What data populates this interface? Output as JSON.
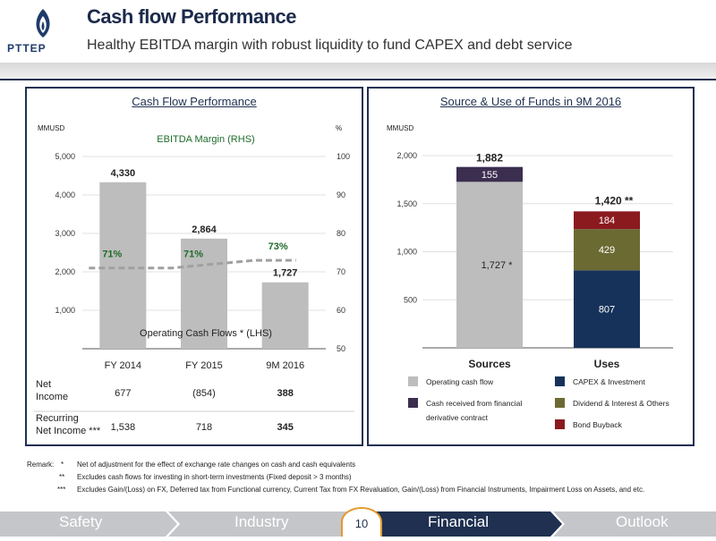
{
  "header": {
    "title": "Cash flow Performance",
    "subtitle": "Healthy EBITDA margin with robust liquidity to fund CAPEX and debt service",
    "logo_text": "PTTEP"
  },
  "left_panel": {
    "title": "Cash Flow Performance",
    "left_unit": "MMUSD",
    "right_unit": "%",
    "series_label": "EBITDA Margin (RHS)",
    "bar_label": "Operating Cash Flows * (LHS)",
    "bar_color": "#bdbdbd",
    "line_color": "#a0a0a0",
    "bar_value_labels": [
      "4,330",
      "2,864",
      "1,727"
    ],
    "margin_labels": [
      "71%",
      "71%",
      "73%"
    ],
    "y_ticks_left": [
      "5,000",
      "4,000",
      "3,000",
      "2,000",
      "1,000"
    ],
    "y_ticks_right": [
      "100",
      "90",
      "80",
      "70",
      "60",
      "50"
    ],
    "categories": [
      "FY 2014",
      "FY 2015",
      "9M 2016"
    ],
    "table": [
      {
        "label": "Net Income",
        "values": [
          "677",
          "(854)",
          "388"
        ]
      },
      {
        "label": "Recurring Net Income ***",
        "values": [
          "1,538",
          "718",
          "345"
        ]
      }
    ]
  },
  "right_panel": {
    "title": "Source & Use of Funds in 9M 2016",
    "unit": "MMUSD",
    "y_ticks": [
      "2,000",
      "1,500",
      "1,000",
      "500"
    ],
    "categories": [
      "Sources",
      "Uses"
    ],
    "sources_total_label": "1,882",
    "uses_total_label": "1,420 **",
    "segment_labels": {
      "operating": "1,727 *",
      "derivative": "155",
      "capex": "807",
      "dividend": "429",
      "bond": "184"
    },
    "legend": [
      {
        "label": "Operating cash flow",
        "color": "#bdbdbd"
      },
      {
        "label": "CAPEX & Investment",
        "color": "#17325a"
      },
      {
        "label": "Cash received from financial derivative contract",
        "color": "#3b2e4f"
      },
      {
        "label": "Dividend & Interest & Others",
        "color": "#6b6a33"
      },
      {
        "label": "Bond Buyback",
        "color": "#8b1a1f"
      }
    ]
  },
  "remarks": {
    "prefix": "Remark:",
    "notes": [
      {
        "mark": "*",
        "text": "Net of adjustment for the effect of exchange rate changes on cash and cash equivalents"
      },
      {
        "mark": "**",
        "text": "Excludes cash flows for investing in short-term investments (Fixed deposit > 3 months)"
      },
      {
        "mark": "***",
        "text": "Excludes Gain/(Loss) on FX, Deferred tax from Functional currency, Current Tax from FX Revaluation, Gain/(Loss) from Financial Instruments, Impairment Loss on Assets, and etc."
      }
    ]
  },
  "footer": {
    "nav": [
      "Safety",
      "Industry",
      "Financial",
      "Outlook"
    ],
    "page_number": "10"
  },
  "chart_data": [
    {
      "type": "bar",
      "title": "Cash Flow Performance",
      "categories": [
        "FY 2014",
        "FY 2015",
        "9M 2016"
      ],
      "series": [
        {
          "name": "Operating Cash Flows * (LHS)",
          "values": [
            4330,
            2864,
            1727
          ],
          "axis": "left"
        },
        {
          "name": "EBITDA Margin (RHS)",
          "values": [
            71,
            71,
            73
          ],
          "axis": "right",
          "type": "line"
        }
      ],
      "ylabel": "MMUSD",
      "ylim": [
        0,
        5000
      ],
      "y2label": "%",
      "y2lim": [
        50,
        100
      ]
    },
    {
      "type": "bar",
      "title": "Source & Use of Funds in 9M 2016",
      "categories": [
        "Sources",
        "Uses"
      ],
      "series": [
        {
          "name": "Operating cash flow",
          "values": [
            1727,
            0
          ]
        },
        {
          "name": "Cash received from financial derivative contract",
          "values": [
            155,
            0
          ]
        },
        {
          "name": "CAPEX & Investment",
          "values": [
            0,
            807
          ]
        },
        {
          "name": "Dividend & Interest & Others",
          "values": [
            0,
            429
          ]
        },
        {
          "name": "Bond Buyback",
          "values": [
            0,
            184
          ]
        }
      ],
      "totals": [
        1882,
        1420
      ],
      "ylabel": "MMUSD",
      "ylim": [
        0,
        2000
      ]
    }
  ]
}
